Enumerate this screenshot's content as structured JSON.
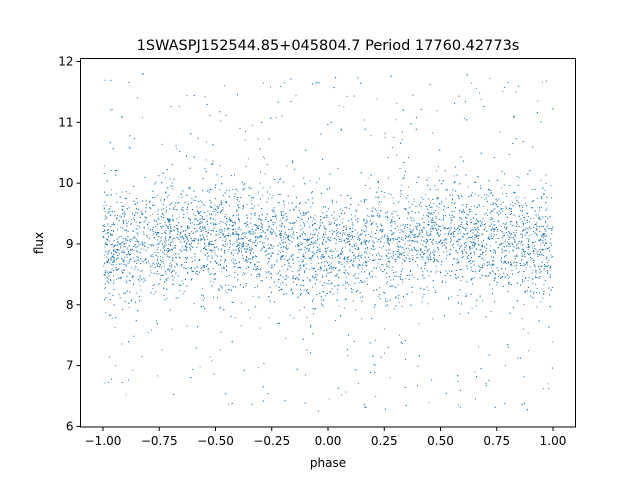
{
  "chart_data": {
    "type": "scatter",
    "title": "1SWASPJ152544.85+045804.7 Period 17760.42773s",
    "xlabel": "phase",
    "ylabel": "flux",
    "xlim": [
      -1.1,
      1.1
    ],
    "ylim": [
      5.99,
      12.05
    ],
    "xticks": [
      -1.0,
      -0.75,
      -0.5,
      -0.25,
      0.0,
      0.25,
      0.5,
      0.75,
      1.0
    ],
    "xtick_labels": [
      "−1.00",
      "−0.75",
      "−0.50",
      "−0.25",
      "0.00",
      "0.25",
      "0.50",
      "0.75",
      "1.00"
    ],
    "yticks": [
      6,
      7,
      8,
      9,
      10,
      11,
      12
    ],
    "ytick_labels": [
      "6",
      "7",
      "8",
      "9",
      "10",
      "11",
      "12"
    ],
    "grid": false,
    "legend": null,
    "marker_color": "#1f77b4",
    "phase_range": [
      -1.0,
      1.0
    ],
    "flux_range": [
      6.25,
      11.8
    ],
    "binned_mean": {
      "phase": [
        -1.0,
        -0.75,
        -0.5,
        -0.25,
        0.0,
        0.25,
        0.5,
        0.75,
        1.0
      ],
      "flux": [
        8.9,
        9.05,
        9.15,
        9.05,
        8.85,
        9.0,
        9.15,
        9.1,
        8.9
      ]
    },
    "core_scatter_sigma": 0.45
  }
}
